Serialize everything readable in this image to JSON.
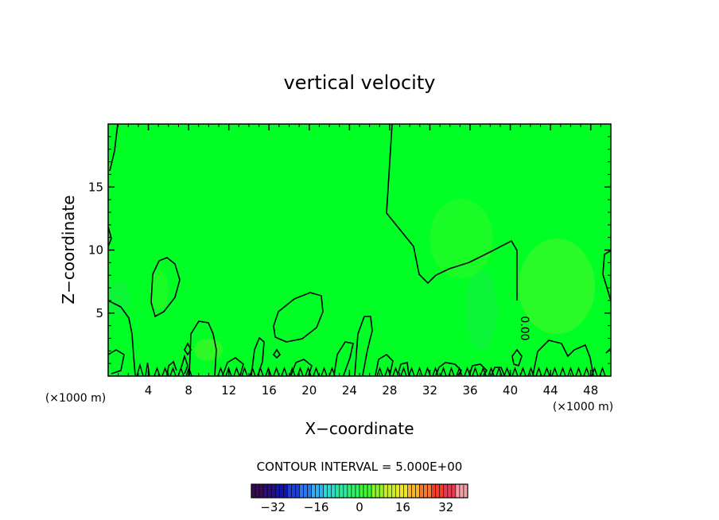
{
  "chart_data": {
    "type": "heatmap",
    "title": "vertical velocity",
    "xlabel": "X−coordinate",
    "ylabel": "Z−coordinate",
    "x_unit": "(×1000 m)",
    "y_unit": "(×1000 m)",
    "xlim": [
      0,
      50
    ],
    "ylim": [
      0,
      20
    ],
    "x_ticks": [
      "4",
      "8",
      "12",
      "16",
      "20",
      "24",
      "28",
      "32",
      "36",
      "40",
      "44",
      "48"
    ],
    "y_ticks": [
      "5",
      "10",
      "15"
    ],
    "contour_label": "0.00",
    "contour_interval_text": "CONTOUR INTERVAL = 5.000E+00",
    "colorbar": {
      "min": -40,
      "max": 40,
      "step": 5,
      "ticks": [
        "−32",
        "−16",
        "0",
        "16",
        "32"
      ],
      "colors": [
        "#3a0a52",
        "#2a0f7a",
        "#1416a8",
        "#1e3fd6",
        "#2a78f0",
        "#2fb2f2",
        "#2fd8d2",
        "#2fe8a0",
        "#2ff26a",
        "#3ff733",
        "#8cf52b",
        "#c6ef2a",
        "#eee62a",
        "#f7b62a",
        "#f7782a",
        "#f0402a",
        "#e83a55",
        "#f5a0a8"
      ]
    },
    "field_colors": {
      "background": "#00ff24",
      "weak_positive": "#4df52a",
      "weak_negative": "#16ef48"
    }
  }
}
